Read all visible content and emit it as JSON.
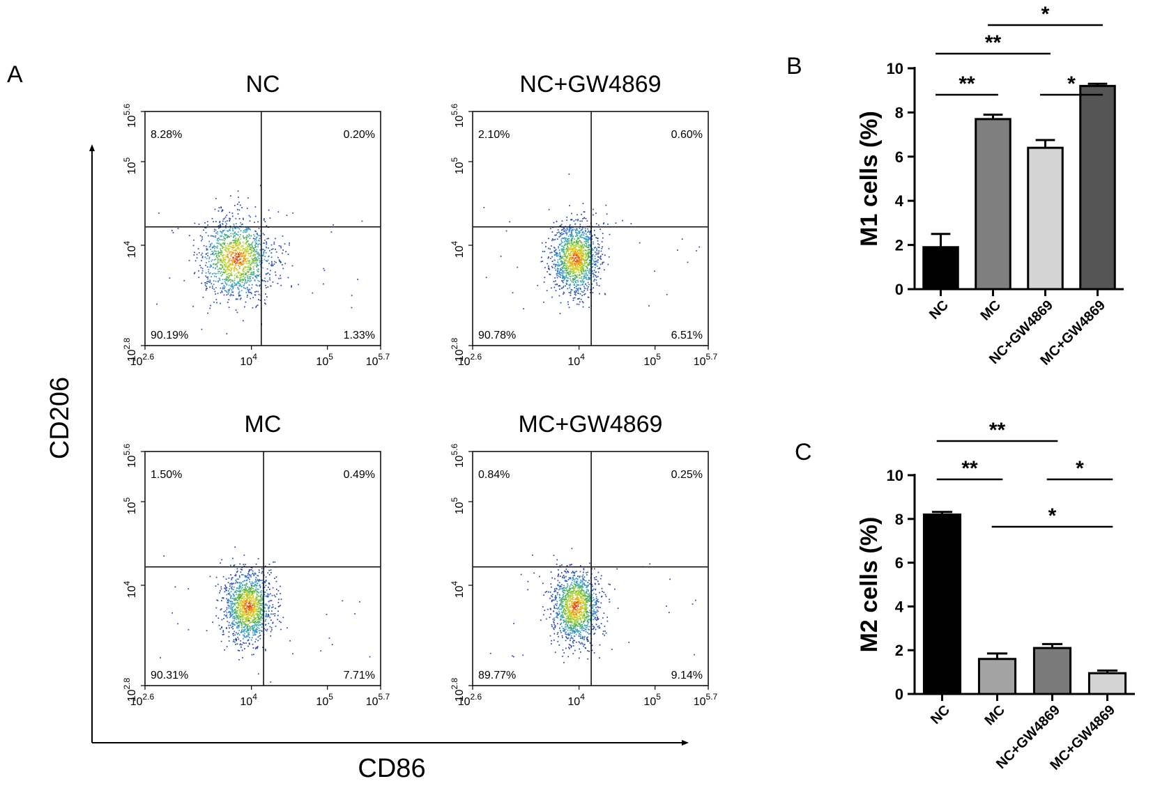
{
  "panel_labels": {
    "a": "A",
    "b": "B",
    "c": "C"
  },
  "flow": {
    "ylabel": "CD206",
    "xlabel": "CD86",
    "x_ticks": [
      {
        "base": "10",
        "exp": "2.6"
      },
      {
        "base": "10",
        "exp": "4"
      },
      {
        "base": "10",
        "exp": "5"
      },
      {
        "base": "10",
        "exp": "5.7"
      }
    ],
    "y_ticks": [
      {
        "base": "10",
        "exp": "2.8"
      },
      {
        "base": "10",
        "exp": "4"
      },
      {
        "base": "10",
        "exp": "5"
      },
      {
        "base": "10",
        "exp": "5.6"
      }
    ]
  },
  "chart_data": [
    {
      "type": "scatter",
      "title": "NC",
      "xlabel": "CD86",
      "ylabel": "CD206",
      "x_log_range": [
        2.6,
        5.7
      ],
      "y_log_range": [
        2.8,
        5.6
      ],
      "gate": {
        "x_log": 4.13,
        "y_log": 4.22
      },
      "population_center_log": [
        3.8,
        3.85
      ],
      "quadrants": {
        "upper_left": "8.28%",
        "upper_right": "0.20%",
        "lower_left": "90.19%",
        "lower_right": "1.33%"
      }
    },
    {
      "type": "scatter",
      "title": "NC+GW4869",
      "xlabel": "CD86",
      "ylabel": "CD206",
      "x_log_range": [
        2.6,
        5.7
      ],
      "y_log_range": [
        2.8,
        5.6
      ],
      "gate": {
        "x_log": 4.16,
        "y_log": 4.22
      },
      "population_center_log": [
        3.95,
        3.85
      ],
      "quadrants": {
        "upper_left": "2.10%",
        "upper_right": "0.60%",
        "lower_left": "90.78%",
        "lower_right": "6.51%"
      }
    },
    {
      "type": "scatter",
      "title": "MC",
      "xlabel": "CD86",
      "ylabel": "CD206",
      "x_log_range": [
        2.6,
        5.7
      ],
      "y_log_range": [
        2.8,
        5.6
      ],
      "gate": {
        "x_log": 4.16,
        "y_log": 4.22
      },
      "population_center_log": [
        3.95,
        3.75
      ],
      "quadrants": {
        "upper_left": "1.50%",
        "upper_right": "0.49%",
        "lower_left": "90.31%",
        "lower_right": "7.71%"
      }
    },
    {
      "type": "scatter",
      "title": "MC+GW4869",
      "xlabel": "CD86",
      "ylabel": "CD206",
      "x_log_range": [
        2.6,
        5.7
      ],
      "y_log_range": [
        2.8,
        5.6
      ],
      "gate": {
        "x_log": 4.16,
        "y_log": 4.22
      },
      "population_center_log": [
        3.95,
        3.75
      ],
      "quadrants": {
        "upper_left": "0.84%",
        "upper_right": "0.25%",
        "lower_left": "89.77%",
        "lower_right": "9.14%"
      }
    },
    {
      "type": "bar",
      "ylabel": "M1  cells  (%)",
      "ylim": [
        0,
        10
      ],
      "yticks": [
        0,
        2,
        4,
        6,
        8,
        10
      ],
      "categories": [
        "NC",
        "MC",
        "NC+GW4869",
        "MC+GW4869"
      ],
      "values": [
        1.9,
        7.7,
        6.4,
        9.2
      ],
      "errors": [
        0.6,
        0.2,
        0.35,
        0.1
      ],
      "colors": [
        "#000000",
        "#7f7f7f",
        "#d4d4d4",
        "#555555"
      ],
      "significance": [
        {
          "from": 0,
          "to": 1,
          "label": "**",
          "level": 0
        },
        {
          "from": 2,
          "to": 3,
          "label": "*",
          "level": 0
        },
        {
          "from": 0,
          "to": 2,
          "label": "**",
          "level": 1
        },
        {
          "from": 1,
          "to": 3,
          "label": "*",
          "level": 2
        }
      ]
    },
    {
      "type": "bar",
      "ylabel": "M2  cells  (%)",
      "ylim": [
        0,
        10
      ],
      "yticks": [
        0,
        2,
        4,
        6,
        8,
        10
      ],
      "categories": [
        "NC",
        "MC",
        "NC+GW4869",
        "MC+GW4869"
      ],
      "values": [
        8.2,
        1.6,
        2.1,
        0.95
      ],
      "errors": [
        0.12,
        0.25,
        0.18,
        0.12
      ],
      "colors": [
        "#000000",
        "#a3a3a3",
        "#7a7a7a",
        "#d4d4d4"
      ],
      "significance": [
        {
          "from": 1,
          "to": 3,
          "label": "*",
          "level": 0
        },
        {
          "from": 0,
          "to": 1,
          "label": "**",
          "level": 1
        },
        {
          "from": 2,
          "to": 3,
          "label": "*",
          "level": 1
        },
        {
          "from": 0,
          "to": 2,
          "label": "**",
          "level": 2
        }
      ]
    }
  ]
}
